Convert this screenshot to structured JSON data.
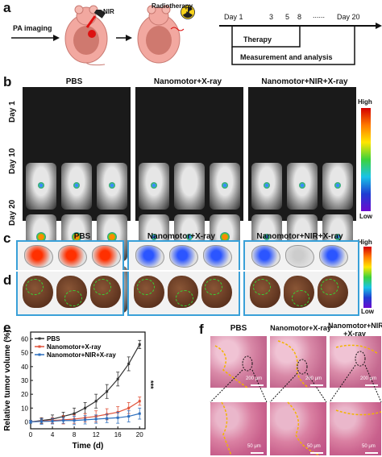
{
  "panels": {
    "a": "a",
    "b": "b",
    "c": "c",
    "d": "d",
    "e": "e",
    "f": "f"
  },
  "panel_a": {
    "pa_imaging": "PA imaging",
    "nir": "NIR",
    "radiotherapy": "Radiotherapy",
    "timeline_days": [
      "Day 1",
      "3",
      "5",
      "8",
      "......",
      "Day 20"
    ],
    "therapy": "Therapy",
    "measurement": "Measurement and analysis"
  },
  "panel_b": {
    "groups": [
      "PBS",
      "Nanomotor+X-ray",
      "Nanomotor+NIR+X-ray"
    ],
    "rows": [
      "Day 1",
      "Day 10",
      "Day 20"
    ],
    "colorbar_high": "High",
    "colorbar_low": "Low"
  },
  "panel_c": {
    "groups": [
      "PBS",
      "Nanomotor+X-ray",
      "Nanomotor+NIR+X-ray"
    ],
    "colorbar_high": "High",
    "colorbar_low": "Low"
  },
  "panel_f": {
    "groups": [
      "PBS",
      "Nanomotor+X-ray",
      "Nanomotor+NIR",
      "+X-ray"
    ],
    "scalebar_top": "200 μm",
    "scalebar_bottom": "50 μm"
  },
  "chart_data": {
    "type": "line",
    "xlabel": "Time (d)",
    "ylabel": "Relative tumor volume (%)",
    "xlim": [
      0,
      21
    ],
    "ylim": [
      -5,
      65
    ],
    "xticks": [
      0,
      4,
      8,
      12,
      16,
      20
    ],
    "yticks": [
      0,
      10,
      20,
      30,
      40,
      50,
      60
    ],
    "x": [
      0,
      2,
      4,
      6,
      8,
      10,
      12,
      14,
      16,
      18,
      20
    ],
    "significance": "***",
    "legend_position": "top-left",
    "series": [
      {
        "name": "PBS",
        "color": "#333333",
        "values": [
          0,
          1,
          2,
          4,
          6,
          10,
          15,
          22,
          31,
          42,
          56
        ],
        "errors": [
          1,
          2,
          3,
          3,
          4,
          4,
          5,
          5,
          5,
          5,
          3
        ]
      },
      {
        "name": "Nanomotor+X-ray",
        "color": "#e0533a",
        "values": [
          0,
          0.5,
          1,
          1.5,
          2,
          3,
          4,
          5.5,
          7,
          10,
          15
        ],
        "errors": [
          1,
          2,
          2,
          3,
          3,
          3,
          4,
          4,
          4,
          4,
          3
        ]
      },
      {
        "name": "Nanomotor+NIR+X-ray",
        "color": "#2e6fbd",
        "values": [
          0,
          0.3,
          0.5,
          1,
          1,
          1.5,
          2,
          2.5,
          3,
          4,
          6
        ],
        "errors": [
          1,
          2,
          2,
          2,
          3,
          3,
          3,
          3,
          4,
          4,
          4
        ]
      }
    ]
  }
}
